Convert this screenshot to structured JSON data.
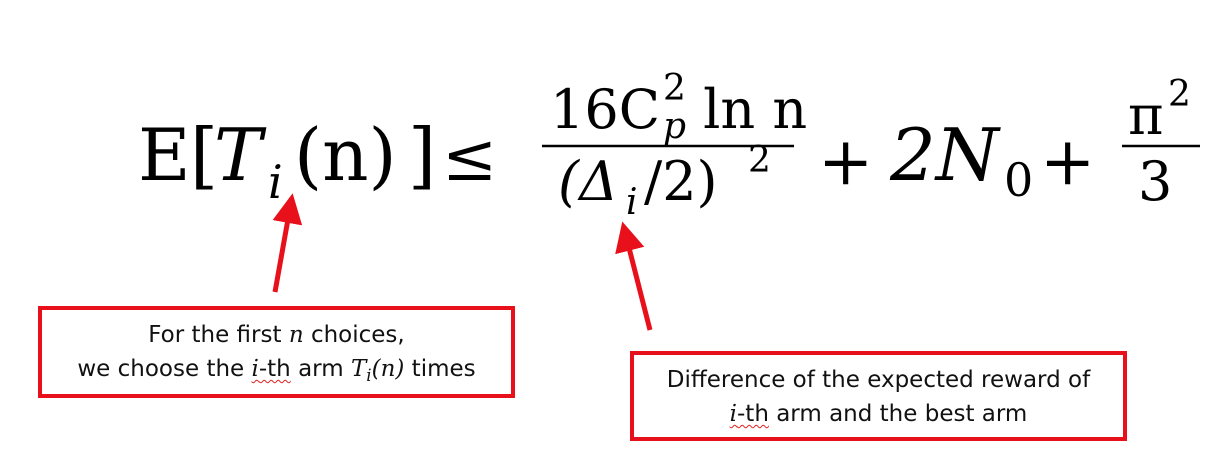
{
  "formula": {
    "expectation": "E",
    "lbracket": "[",
    "T": "T",
    "i": "i",
    "n_arg": "(n)",
    "rbracket": "]",
    "leq": "≤",
    "numerator": "16C",
    "num_sup": "2",
    "num_sub": "p",
    "num_rest": " ln n",
    "denominator": "(Δ",
    "den_sub": "i",
    "den_rest": "/2)",
    "den_sup": "2",
    "plus1": "+",
    "two_n": "2N",
    "n_sub": "0",
    "plus2": "+",
    "pi": "π",
    "pi_sup": "2",
    "three": "3"
  },
  "callout_left": {
    "line1_a": "For the first ",
    "line1_var": "n",
    "line1_b": " choices,",
    "line2_a": "we choose the ",
    "line2_var": "i",
    "line2_b": "-th",
    "line2_c": " arm ",
    "line2_T": "T",
    "line2_Tsub": "i",
    "line2_arg": "(n)",
    "line2_d": " times"
  },
  "callout_right": {
    "line1": "Difference of the expected reward of",
    "line2_var": "i",
    "line2_a": "-th",
    "line2_b": " arm and the best arm"
  },
  "colors": {
    "accent": "#e8111b"
  }
}
